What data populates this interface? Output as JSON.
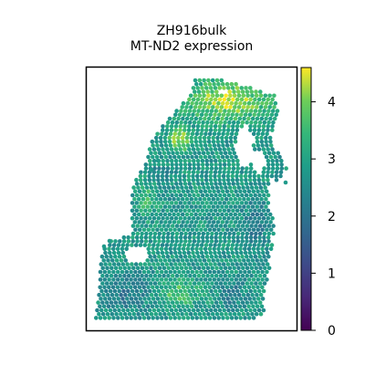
{
  "title_line1": "ZH916bulk",
  "title_line2": "MT-ND2 expression",
  "chart_data": {
    "type": "scatter",
    "kind": "spatial spot map (hexagonal grid of spots colored by expression)",
    "title": "ZH916bulk\nMT-ND2 expression",
    "colormap": "viridis",
    "color_range": [
      0,
      4.6
    ],
    "colorbar_ticks": [
      0,
      1,
      2,
      3,
      4
    ],
    "colorbar_tick_labels": [
      "0",
      "1",
      "2",
      "3",
      "4"
    ],
    "axes_visible": false,
    "grid": false,
    "typical_value": 2.8,
    "high_region_value": 4.3,
    "low_region_value": 2.1,
    "spot_count_approx": 2400
  }
}
